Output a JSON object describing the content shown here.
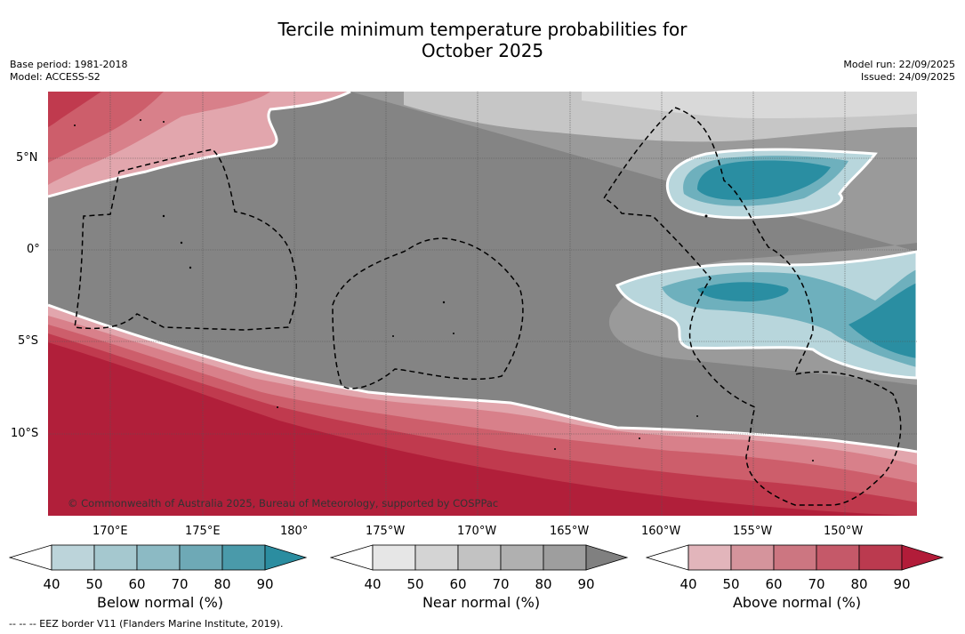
{
  "title_line1": "Tercile minimum temperature probabilities for",
  "title_line2": "October 2025",
  "meta": {
    "base_period": "Base period: 1981-2018",
    "model": "Model: ACCESS-S2",
    "model_run": "Model run: 22/09/2025",
    "issued": "Issued: 24/09/2025"
  },
  "map": {
    "lat_labels": [
      "5°N",
      "0°",
      "5°S",
      "10°S"
    ],
    "lon_labels": [
      "170°E",
      "175°E",
      "180°",
      "175°W",
      "170°W",
      "165°W",
      "160°W",
      "155°W",
      "150°W"
    ],
    "copyright": "© Commonwealth of Australia 2025, Bureau of Meteorology, supported by COSPPac",
    "colors": {
      "above_90": "#b11f3a",
      "above_80": "#c03a4e",
      "above_70": "#cd5e6b",
      "above_60": "#d8808a",
      "above_50": "#e2a6ad",
      "near_90": "#848484",
      "near_80": "#9a9a9a",
      "near_70": "#b2b2b2",
      "near_60": "#c6c6c6",
      "near_50": "#d9d9d9",
      "below_90": "#2a8ea2",
      "below_80": "#4a9fb0",
      "below_70": "#6eb0bd",
      "below_60": "#93c3cc",
      "below_50": "#b8d6dc"
    }
  },
  "colorbars": [
    {
      "title": "Below normal (%)",
      "ticks": [
        "40",
        "50",
        "60",
        "70",
        "80",
        "90"
      ],
      "colors": [
        "#ffffff",
        "#bcd4da",
        "#a5c8cf",
        "#8cbac4",
        "#6ea9b6",
        "#4a9aaa",
        "#2b8da0"
      ]
    },
    {
      "title": "Near normal (%)",
      "ticks": [
        "40",
        "50",
        "60",
        "70",
        "80",
        "90"
      ],
      "colors": [
        "#ffffff",
        "#e6e6e6",
        "#d4d4d4",
        "#c2c2c2",
        "#b0b0b0",
        "#9e9e9e",
        "#808080"
      ]
    },
    {
      "title": "Above normal (%)",
      "ticks": [
        "40",
        "50",
        "60",
        "70",
        "80",
        "90"
      ],
      "colors": [
        "#ffffff",
        "#e2b5bb",
        "#d5949c",
        "#cc7681",
        "#c55969",
        "#bb3a4f",
        "#b21c39"
      ]
    }
  ],
  "footer": "--  --  -- EEZ border V11 (Flanders Marine Institute, 2019)."
}
